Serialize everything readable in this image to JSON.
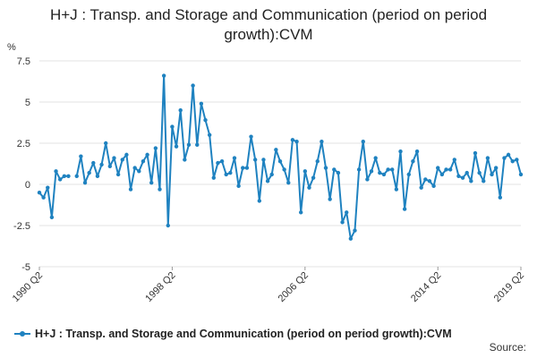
{
  "title": "H+J : Transp. and Storage and Communication (period on period growth):CVM",
  "legend_label": "H+J : Transp. and Storage and Communication (period on period growth):CVM",
  "source_label": "Source:",
  "colors": {
    "series": "#1f82c0",
    "grid": "#e3e3e3",
    "text": "#333333"
  },
  "chart_data": {
    "type": "line",
    "title": "H+J : Transp. and Storage and Communication (period on period growth):CVM",
    "ylabel": "%",
    "ylim": [
      -5,
      7.5
    ],
    "yticks": [
      -5,
      -2.5,
      0,
      2.5,
      5,
      7.5
    ],
    "ytick_labels": [
      "-5",
      "-2.5",
      "0",
      "2.5",
      "5",
      "7.5"
    ],
    "xticks": [
      "1990 Q2",
      "1998 Q2",
      "2006 Q2",
      "2014 Q2",
      "2019 Q2"
    ],
    "grid": true,
    "legend_position": "bottom",
    "series": [
      {
        "name": "H+J : Transp. and Storage and Communication (period on period growth):CVM",
        "x": [
          "1990 Q2",
          "1990 Q3",
          "1990 Q4",
          "1991 Q1",
          "1991 Q2",
          "1991 Q3",
          "1991 Q4",
          "1992 Q1",
          "1992 Q2",
          "1992 Q3",
          "1992 Q4",
          "1993 Q1",
          "1993 Q2",
          "1993 Q3",
          "1993 Q4",
          "1994 Q1",
          "1994 Q2",
          "1994 Q3",
          "1994 Q4",
          "1995 Q1",
          "1995 Q2",
          "1995 Q3",
          "1995 Q4",
          "1996 Q1",
          "1996 Q2",
          "1996 Q3",
          "1996 Q4",
          "1997 Q1",
          "1997 Q2",
          "1997 Q3",
          "1997 Q4",
          "1998 Q1",
          "1998 Q2",
          "1998 Q3",
          "1998 Q4",
          "1999 Q1",
          "1999 Q2",
          "1999 Q3",
          "1999 Q4",
          "2000 Q1",
          "2000 Q2",
          "2000 Q3",
          "2000 Q4",
          "2001 Q1",
          "2001 Q2",
          "2001 Q3",
          "2001 Q4",
          "2002 Q1",
          "2002 Q2",
          "2002 Q3",
          "2002 Q4",
          "2003 Q1",
          "2003 Q2",
          "2003 Q3",
          "2003 Q4",
          "2004 Q1",
          "2004 Q2",
          "2004 Q3",
          "2004 Q4",
          "2005 Q1",
          "2005 Q2",
          "2005 Q3",
          "2005 Q4",
          "2006 Q1",
          "2006 Q2",
          "2006 Q3",
          "2006 Q4",
          "2007 Q1",
          "2007 Q2",
          "2007 Q3",
          "2007 Q4",
          "2008 Q1",
          "2008 Q2",
          "2008 Q3",
          "2008 Q4",
          "2009 Q1",
          "2009 Q2",
          "2009 Q3",
          "2009 Q4",
          "2010 Q1",
          "2010 Q2",
          "2010 Q3",
          "2010 Q4",
          "2011 Q1",
          "2011 Q2",
          "2011 Q3",
          "2011 Q4",
          "2012 Q1",
          "2012 Q2",
          "2012 Q3",
          "2012 Q4",
          "2013 Q1",
          "2013 Q2",
          "2013 Q3",
          "2013 Q4",
          "2014 Q1",
          "2014 Q2",
          "2014 Q3",
          "2014 Q4",
          "2015 Q1",
          "2015 Q2",
          "2015 Q3",
          "2015 Q4",
          "2016 Q1",
          "2016 Q2",
          "2016 Q3",
          "2016 Q4",
          "2017 Q1",
          "2017 Q2",
          "2017 Q3",
          "2017 Q4",
          "2018 Q1",
          "2018 Q2",
          "2018 Q3",
          "2018 Q4",
          "2019 Q1",
          "2019 Q2"
        ],
        "values": [
          -0.5,
          -0.8,
          -0.2,
          -2.0,
          0.8,
          0.3,
          0.5,
          0.5,
          null,
          0.5,
          1.7,
          0.1,
          0.7,
          1.3,
          0.5,
          1.2,
          2.5,
          1.1,
          1.6,
          0.6,
          1.5,
          1.8,
          -0.3,
          1.0,
          0.8,
          1.4,
          1.8,
          0.1,
          2.2,
          -0.3,
          6.6,
          -2.5,
          3.5,
          2.3,
          4.5,
          1.5,
          2.4,
          6.0,
          2.4,
          4.9,
          3.9,
          3.0,
          0.4,
          1.3,
          1.4,
          0.6,
          0.7,
          1.6,
          -0.1,
          1.0,
          1.0,
          2.9,
          1.5,
          -1.0,
          1.5,
          0.2,
          0.6,
          2.1,
          1.4,
          0.9,
          0.1,
          2.7,
          2.6,
          -1.7,
          0.8,
          -0.2,
          0.4,
          1.4,
          2.6,
          1.0,
          -0.9,
          0.9,
          0.7,
          -2.3,
          -1.7,
          -3.3,
          -2.8,
          0.9,
          2.6,
          0.3,
          0.8,
          1.6,
          0.7,
          0.6,
          0.9,
          0.9,
          -0.3,
          2.0,
          -1.5,
          0.6,
          1.4,
          2.0,
          -0.2,
          0.3,
          0.2,
          -0.1,
          1.0,
          0.6,
          0.9,
          0.9,
          1.5,
          0.5,
          0.4,
          0.7,
          0.2,
          1.9,
          0.7,
          0.2,
          1.6,
          0.6,
          1.0,
          -0.8,
          1.6,
          1.8,
          1.4,
          1.5,
          0.6
        ]
      }
    ]
  }
}
